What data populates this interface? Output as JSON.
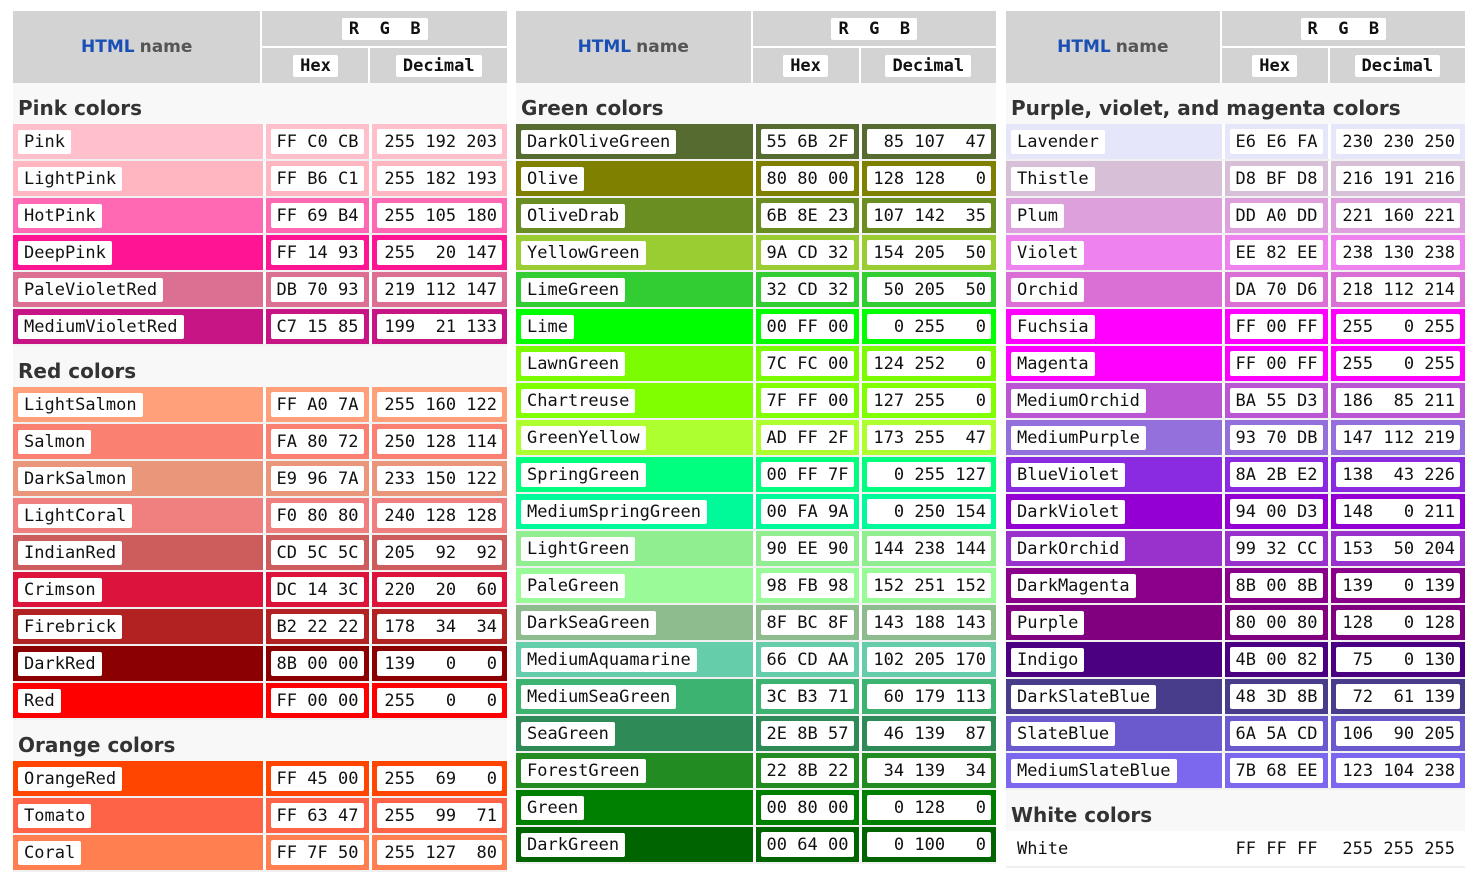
{
  "header": {
    "html": "HTML",
    "name": "name",
    "rgb": "R  G  B",
    "hex": "Hex",
    "decimal": "Decimal"
  },
  "panels": [
    {
      "sections": [
        {
          "title": "Pink colors",
          "rows": [
            {
              "name": "Pink",
              "hex": "FF C0 CB",
              "dec": "255 192 203",
              "color": "#FFC0CB"
            },
            {
              "name": "LightPink",
              "hex": "FF B6 C1",
              "dec": "255 182 193",
              "color": "#FFB6C1"
            },
            {
              "name": "HotPink",
              "hex": "FF 69 B4",
              "dec": "255 105 180",
              "color": "#FF69B4"
            },
            {
              "name": "DeepPink",
              "hex": "FF 14 93",
              "dec": "255  20 147",
              "color": "#FF1493"
            },
            {
              "name": "PaleVioletRed",
              "hex": "DB 70 93",
              "dec": "219 112 147",
              "color": "#DB7093"
            },
            {
              "name": "MediumVioletRed",
              "hex": "C7 15 85",
              "dec": "199  21 133",
              "color": "#C71585"
            }
          ]
        },
        {
          "title": "Red colors",
          "rows": [
            {
              "name": "LightSalmon",
              "hex": "FF A0 7A",
              "dec": "255 160 122",
              "color": "#FFA07A"
            },
            {
              "name": "Salmon",
              "hex": "FA 80 72",
              "dec": "250 128 114",
              "color": "#FA8072"
            },
            {
              "name": "DarkSalmon",
              "hex": "E9 96 7A",
              "dec": "233 150 122",
              "color": "#E9967A"
            },
            {
              "name": "LightCoral",
              "hex": "F0 80 80",
              "dec": "240 128 128",
              "color": "#F08080"
            },
            {
              "name": "IndianRed",
              "hex": "CD 5C 5C",
              "dec": "205  92  92",
              "color": "#CD5C5C"
            },
            {
              "name": "Crimson",
              "hex": "DC 14 3C",
              "dec": "220  20  60",
              "color": "#DC143C"
            },
            {
              "name": "Firebrick",
              "hex": "B2 22 22",
              "dec": "178  34  34",
              "color": "#B22222"
            },
            {
              "name": "DarkRed",
              "hex": "8B 00 00",
              "dec": "139   0   0",
              "color": "#8B0000"
            },
            {
              "name": "Red",
              "hex": "FF 00 00",
              "dec": "255   0   0",
              "color": "#FF0000"
            }
          ]
        },
        {
          "title": "Orange colors",
          "rows": [
            {
              "name": "OrangeRed",
              "hex": "FF 45 00",
              "dec": "255  69   0",
              "color": "#FF4500"
            },
            {
              "name": "Tomato",
              "hex": "FF 63 47",
              "dec": "255  99  71",
              "color": "#FF6347"
            },
            {
              "name": "Coral",
              "hex": "FF 7F 50",
              "dec": "255 127  80",
              "color": "#FF7F50"
            }
          ]
        }
      ]
    },
    {
      "sections": [
        {
          "title": "Green colors",
          "rows": [
            {
              "name": "DarkOliveGreen",
              "hex": "55 6B 2F",
              "dec": " 85 107  47",
              "color": "#556B2F"
            },
            {
              "name": "Olive",
              "hex": "80 80 00",
              "dec": "128 128   0",
              "color": "#808000"
            },
            {
              "name": "OliveDrab",
              "hex": "6B 8E 23",
              "dec": "107 142  35",
              "color": "#6B8E23"
            },
            {
              "name": "YellowGreen",
              "hex": "9A CD 32",
              "dec": "154 205  50",
              "color": "#9ACD32"
            },
            {
              "name": "LimeGreen",
              "hex": "32 CD 32",
              "dec": " 50 205  50",
              "color": "#32CD32"
            },
            {
              "name": "Lime",
              "hex": "00 FF 00",
              "dec": "  0 255   0",
              "color": "#00FF00"
            },
            {
              "name": "LawnGreen",
              "hex": "7C FC 00",
              "dec": "124 252   0",
              "color": "#7CFC00"
            },
            {
              "name": "Chartreuse",
              "hex": "7F FF 00",
              "dec": "127 255   0",
              "color": "#7FFF00"
            },
            {
              "name": "GreenYellow",
              "hex": "AD FF 2F",
              "dec": "173 255  47",
              "color": "#ADFF2F"
            },
            {
              "name": "SpringGreen",
              "hex": "00 FF 7F",
              "dec": "  0 255 127",
              "color": "#00FF7F"
            },
            {
              "name": "MediumSpringGreen",
              "hex": "00 FA 9A",
              "dec": "  0 250 154",
              "color": "#00FA9A"
            },
            {
              "name": "LightGreen",
              "hex": "90 EE 90",
              "dec": "144 238 144",
              "color": "#90EE90"
            },
            {
              "name": "PaleGreen",
              "hex": "98 FB 98",
              "dec": "152 251 152",
              "color": "#98FB98"
            },
            {
              "name": "DarkSeaGreen",
              "hex": "8F BC 8F",
              "dec": "143 188 143",
              "color": "#8FBC8F"
            },
            {
              "name": "MediumAquamarine",
              "hex": "66 CD AA",
              "dec": "102 205 170",
              "color": "#66CDAA"
            },
            {
              "name": "MediumSeaGreen",
              "hex": "3C B3 71",
              "dec": " 60 179 113",
              "color": "#3CB371"
            },
            {
              "name": "SeaGreen",
              "hex": "2E 8B 57",
              "dec": " 46 139  87",
              "color": "#2E8B57"
            },
            {
              "name": "ForestGreen",
              "hex": "22 8B 22",
              "dec": " 34 139  34",
              "color": "#228B22"
            },
            {
              "name": "Green",
              "hex": "00 80 00",
              "dec": "  0 128   0",
              "color": "#008000"
            },
            {
              "name": "DarkGreen",
              "hex": "00 64 00",
              "dec": "  0 100   0",
              "color": "#006400"
            }
          ]
        }
      ]
    },
    {
      "sections": [
        {
          "title": "Purple, violet, and magenta colors",
          "rows": [
            {
              "name": "Lavender",
              "hex": "E6 E6 FA",
              "dec": "230 230 250",
              "color": "#E6E6FA"
            },
            {
              "name": "Thistle",
              "hex": "D8 BF D8",
              "dec": "216 191 216",
              "color": "#D8BFD8"
            },
            {
              "name": "Plum",
              "hex": "DD A0 DD",
              "dec": "221 160 221",
              "color": "#DDA0DD"
            },
            {
              "name": "Violet",
              "hex": "EE 82 EE",
              "dec": "238 130 238",
              "color": "#EE82EE"
            },
            {
              "name": "Orchid",
              "hex": "DA 70 D6",
              "dec": "218 112 214",
              "color": "#DA70D6"
            },
            {
              "name": "Fuchsia",
              "hex": "FF 00 FF",
              "dec": "255   0 255",
              "color": "#FF00FF"
            },
            {
              "name": "Magenta",
              "hex": "FF 00 FF",
              "dec": "255   0 255",
              "color": "#FF00FF"
            },
            {
              "name": "MediumOrchid",
              "hex": "BA 55 D3",
              "dec": "186  85 211",
              "color": "#BA55D3"
            },
            {
              "name": "MediumPurple",
              "hex": "93 70 DB",
              "dec": "147 112 219",
              "color": "#9370DB"
            },
            {
              "name": "BlueViolet",
              "hex": "8A 2B E2",
              "dec": "138  43 226",
              "color": "#8A2BE2"
            },
            {
              "name": "DarkViolet",
              "hex": "94 00 D3",
              "dec": "148   0 211",
              "color": "#9400D3"
            },
            {
              "name": "DarkOrchid",
              "hex": "99 32 CC",
              "dec": "153  50 204",
              "color": "#9932CC"
            },
            {
              "name": "DarkMagenta",
              "hex": "8B 00 8B",
              "dec": "139   0 139",
              "color": "#8B008B"
            },
            {
              "name": "Purple",
              "hex": "80 00 80",
              "dec": "128   0 128",
              "color": "#800080"
            },
            {
              "name": "Indigo",
              "hex": "4B 00 82",
              "dec": " 75   0 130",
              "color": "#4B0082"
            },
            {
              "name": "DarkSlateBlue",
              "hex": "48 3D 8B",
              "dec": " 72  61 139",
              "color": "#483D8B"
            },
            {
              "name": "SlateBlue",
              "hex": "6A 5A CD",
              "dec": "106  90 205",
              "color": "#6A5ACD"
            },
            {
              "name": "MediumSlateBlue",
              "hex": "7B 68 EE",
              "dec": "123 104 238",
              "color": "#7B68EE"
            }
          ]
        },
        {
          "title": "White colors",
          "rows": [
            {
              "name": "White",
              "hex": "FF FF FF",
              "dec": "255 255 255",
              "color": "#FFFFFF"
            }
          ]
        }
      ]
    }
  ]
}
